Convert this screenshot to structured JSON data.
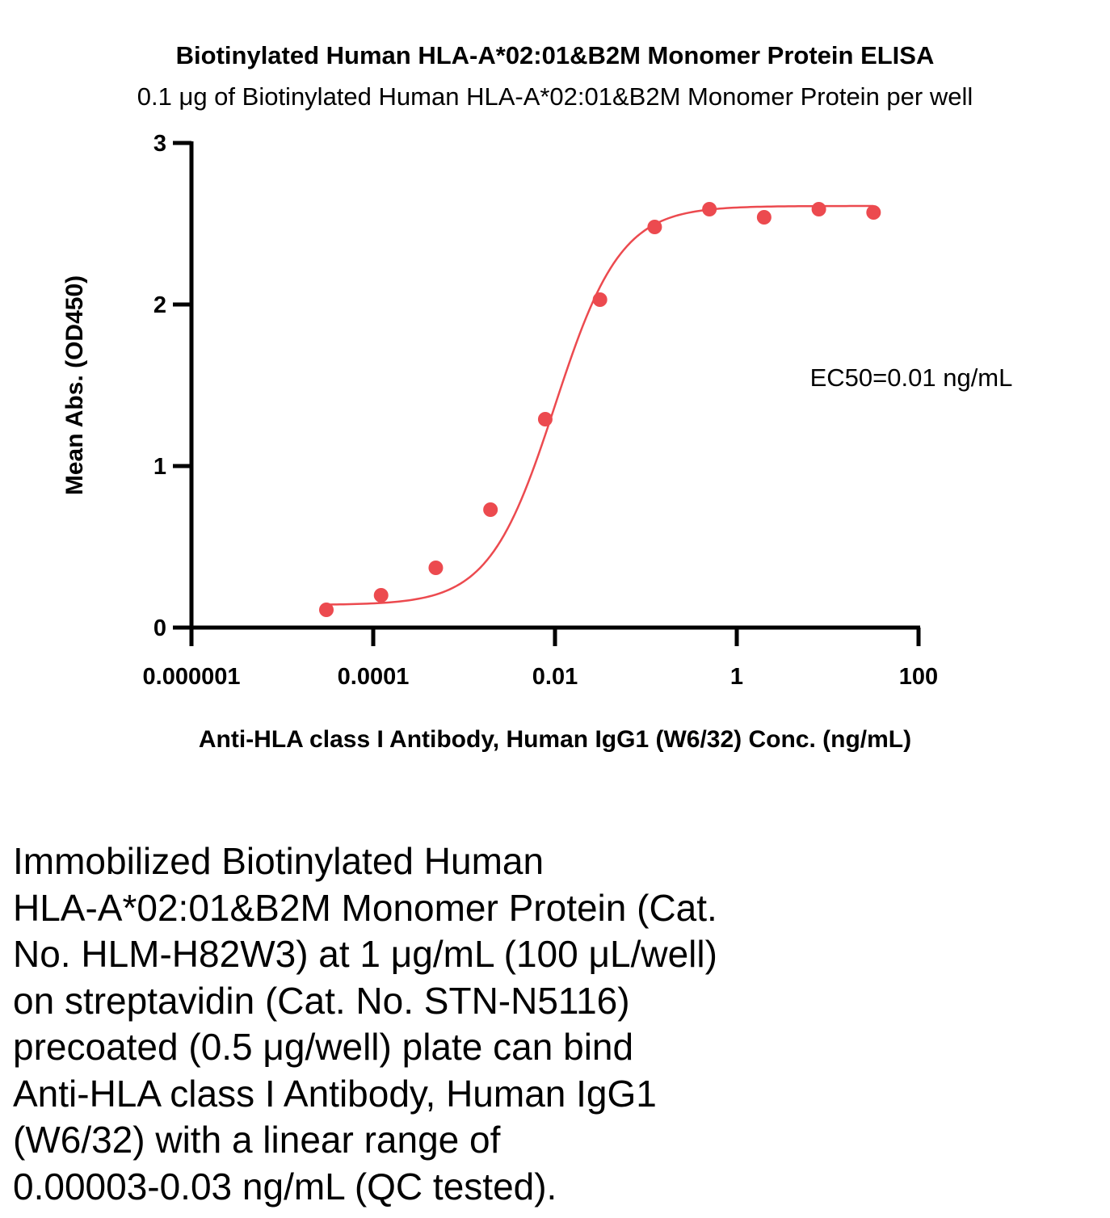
{
  "chart_data": {
    "type": "scatter",
    "title": "Biotinylated Human HLA-A*02:01&B2M Monomer Protein ELISA",
    "subtitle": "0.1 μg of Biotinylated Human HLA-A*02:01&B2M Monomer Protein per well",
    "xlabel": "Anti-HLA class I Antibody, Human IgG1 (W6/32) Conc. (ng/mL)",
    "ylabel": "Mean Abs. (OD450)",
    "xscale": "log",
    "xlim": [
      1e-06,
      100
    ],
    "ylim": [
      0,
      3
    ],
    "xticks": [
      1e-06,
      0.0001,
      0.01,
      1,
      100
    ],
    "xtick_labels": [
      "0.000001",
      "0.0001",
      "0.01",
      "1",
      "100"
    ],
    "yticks": [
      0,
      1,
      2,
      3
    ],
    "ytick_labels": [
      "0",
      "1",
      "2",
      "3"
    ],
    "series": [
      {
        "color": "#ec4a4f",
        "x": [
          3.05e-05,
          0.000122,
          0.000488,
          0.00195,
          0.00781,
          0.03125,
          0.125,
          0.5,
          2,
          8,
          32
        ],
        "y": [
          0.11,
          0.2,
          0.37,
          0.73,
          1.29,
          2.03,
          2.48,
          2.59,
          2.54,
          2.59,
          2.57
        ]
      }
    ],
    "fit": {
      "type": "4PL",
      "bottom": 0.14,
      "top": 2.61,
      "ec50": 0.01,
      "hill": 1.2
    },
    "annotation": "EC50=0.01 ng/mL",
    "grid": false,
    "legend": "none"
  },
  "caption": "Immobilized Biotinylated Human\nHLA-A*02:01&B2M Monomer Protein (Cat.\nNo. HLM-H82W3) at 1 μg/mL (100 μL/well)\non streptavidin (Cat. No. STN-N5116)\nprecoated (0.5 μg/well) plate can bind\nAnti-HLA class I Antibody, Human IgG1\n(W6/32) with a linear range of\n0.00003-0.03 ng/mL (QC tested)."
}
